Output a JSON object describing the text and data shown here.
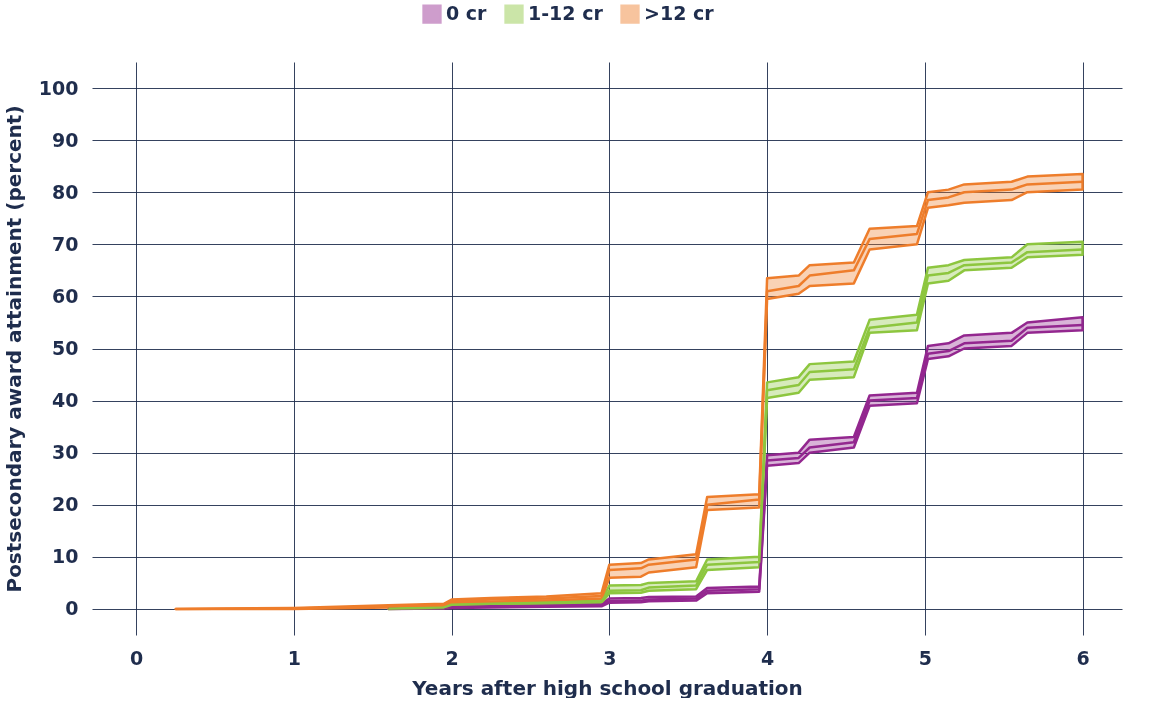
{
  "chart_data": {
    "type": "line",
    "xlabel": "Years after high school graduation",
    "ylabel": "Postsecondary award attainment (percent)",
    "x": [
      0.25,
      1,
      1.6,
      1.95,
      2.0,
      2.25,
      2.6,
      2.95,
      3.0,
      3.2,
      3.25,
      3.55,
      3.62,
      3.95,
      4.0,
      4.2,
      4.27,
      4.55,
      4.65,
      4.95,
      5.02,
      5.15,
      5.25,
      5.55,
      5.65,
      6.0
    ],
    "series": [
      {
        "name": "0 cr",
        "color": "#93278f",
        "values": [
          null,
          null,
          0.1,
          0.2,
          0.4,
          0.5,
          0.6,
          0.8,
          1.5,
          1.6,
          1.8,
          2,
          3.5,
          3.8,
          28.5,
          29,
          31,
          32,
          40,
          40.5,
          49,
          49.5,
          51,
          51.5,
          54,
          54.5
        ],
        "lower": [
          null,
          null,
          0,
          0.1,
          0.2,
          0.3,
          0.4,
          0.5,
          1.2,
          1.3,
          1.5,
          1.6,
          3,
          3.3,
          27.5,
          28,
          30,
          31,
          39,
          39.5,
          48,
          48.5,
          50,
          50.5,
          53,
          53.5
        ],
        "upper": [
          null,
          null,
          0.2,
          0.3,
          0.6,
          0.7,
          0.8,
          1,
          2,
          2.1,
          2.3,
          2.4,
          4,
          4.3,
          29.5,
          30,
          32.5,
          33,
          41,
          41.5,
          50.5,
          51,
          52.5,
          53,
          55,
          56
        ]
      },
      {
        "name": "1-12 cr",
        "color": "#8dc63f",
        "values": [
          null,
          null,
          0.1,
          0.3,
          0.8,
          1,
          1.2,
          1.5,
          3.5,
          3.6,
          4.1,
          4.5,
          8.5,
          9,
          42,
          43,
          45.5,
          46,
          54,
          55,
          64,
          64.5,
          66,
          66.5,
          68.5,
          69
        ],
        "lower": [
          null,
          null,
          0,
          0.2,
          0.5,
          0.7,
          0.9,
          1.2,
          3,
          3.1,
          3.5,
          3.8,
          7.5,
          8,
          40.5,
          41.5,
          44,
          44.5,
          53,
          53.5,
          62.5,
          63,
          65,
          65.5,
          67.5,
          68
        ],
        "upper": [
          null,
          null,
          0.2,
          0.5,
          1,
          1.3,
          1.5,
          1.8,
          4.5,
          4.6,
          5,
          5.3,
          9.5,
          10,
          43.5,
          44.5,
          47,
          47.5,
          55.5,
          56.5,
          65.5,
          66,
          67,
          67.5,
          70,
          70.5
        ]
      },
      {
        "name": ">12 cr",
        "color": "#ee7d2b",
        "values": [
          0,
          0.1,
          0.5,
          0.8,
          1.5,
          1.8,
          2,
          2.5,
          7.5,
          7.8,
          8.5,
          9.5,
          20,
          21,
          61,
          62,
          64,
          65,
          71,
          72,
          78.5,
          79,
          80,
          80.5,
          81.5,
          82
        ],
        "lower": [
          0,
          0,
          0.3,
          0.5,
          1.2,
          1.4,
          1.6,
          2,
          6,
          6.2,
          7,
          8,
          19,
          19.5,
          59.5,
          60.5,
          62,
          62.5,
          69,
          70,
          77,
          77.5,
          78,
          78.5,
          80,
          80.5
        ],
        "upper": [
          0,
          0.2,
          0.7,
          1,
          1.8,
          2.1,
          2.4,
          3,
          8.5,
          8.8,
          9.5,
          10.5,
          21.5,
          22,
          63.5,
          64,
          66,
          66.5,
          73,
          73.5,
          80,
          80.5,
          81.5,
          82,
          83,
          83.5
        ]
      }
    ],
    "xlim": [
      -0.28,
      6.25
    ],
    "xticks": [
      0,
      1,
      2,
      3,
      4,
      5,
      6
    ],
    "ylim": [
      -5,
      105
    ],
    "yticks": [
      0,
      10,
      20,
      30,
      40,
      50,
      60,
      70,
      80,
      90,
      100
    ],
    "grid": true,
    "legend": "top"
  }
}
